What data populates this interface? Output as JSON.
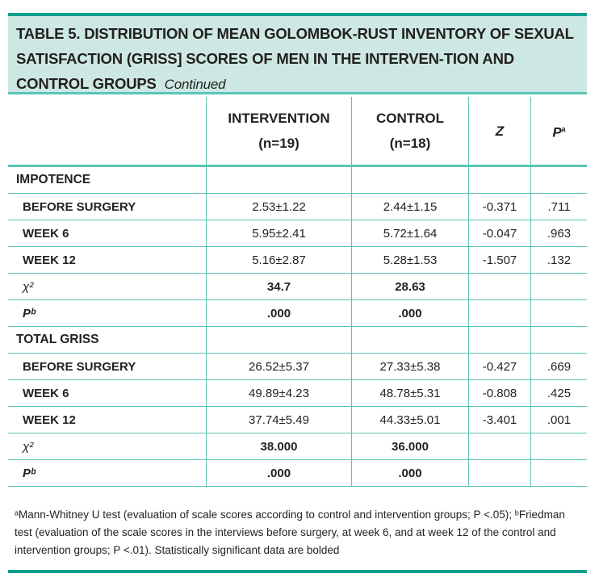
{
  "title": {
    "main": "TABLE 5. DISTRIBUTION OF MEAN GOLOMBOK-RUST INVENTORY OF SEXUAL SATISFACTION (GRISS] SCORES OF MEN IN THE INTERVEN-TION AND CONTROL GROUPS",
    "continued": "Continued"
  },
  "headers": {
    "intervention": "INTERVENTION",
    "intervention_n": "(n=19)",
    "control": "CONTROL",
    "control_n": "(n=18)",
    "z": "Z",
    "p": "P",
    "p_sup": "a"
  },
  "rows": [
    {
      "label": "IMPOTENCE",
      "type": "section",
      "cells": [
        "",
        "",
        "",
        ""
      ]
    },
    {
      "label": "BEFORE SURGERY",
      "type": "sub",
      "cells": [
        "2.53±1.22",
        "2.44±1.15",
        "-0.371",
        ".711"
      ]
    },
    {
      "label": "WEEK 6",
      "type": "sub",
      "cells": [
        "5.95±2.41",
        "5.72±1.64",
        "-0.047",
        ".963"
      ]
    },
    {
      "label": "WEEK 12",
      "type": "sub",
      "cells": [
        "5.16±2.87",
        "5.28±1.53",
        "-1.507",
        ".132"
      ]
    },
    {
      "label": "χ²",
      "type": "stat",
      "cells": [
        "34.7",
        "28.63",
        "",
        ""
      ]
    },
    {
      "label": "Pᵇ",
      "type": "stat",
      "cells": [
        ".000",
        ".000",
        "",
        ""
      ]
    },
    {
      "label": "TOTAL GRISS",
      "type": "section",
      "cells": [
        "",
        "",
        "",
        ""
      ]
    },
    {
      "label": "BEFORE SURGERY",
      "type": "sub",
      "cells": [
        "26.52±5.37",
        "27.33±5.38",
        "-0.427",
        ".669"
      ]
    },
    {
      "label": "WEEK 6",
      "type": "sub",
      "cells": [
        "49.89±4.23",
        "48.78±5.31",
        "-0.808",
        ".425"
      ]
    },
    {
      "label": "WEEK 12",
      "type": "sub",
      "cells": [
        "37.74±5.49",
        "44.33±5.01",
        "-3.401",
        ".001"
      ]
    },
    {
      "label": "χ²",
      "type": "stat",
      "cells": [
        "38.000",
        "36.000",
        "",
        ""
      ]
    },
    {
      "label": "Pᵇ",
      "type": "stat",
      "cells": [
        ".000",
        ".000",
        "",
        ""
      ]
    }
  ],
  "footnote": "ᵃMann-Whitney U test (evaluation of scale scores according to control and intervention groups; P <.05); ᵇFriedman test (evaluation of the scale scores in the interviews before surgery, at week 6, and at week 12 of the control and intervention groups; P <.01). Statistically significant data are bolded",
  "colors": {
    "accent": "#0a9e8c",
    "header_bg": "#cde8e2",
    "rule": "#5cc4b6"
  }
}
